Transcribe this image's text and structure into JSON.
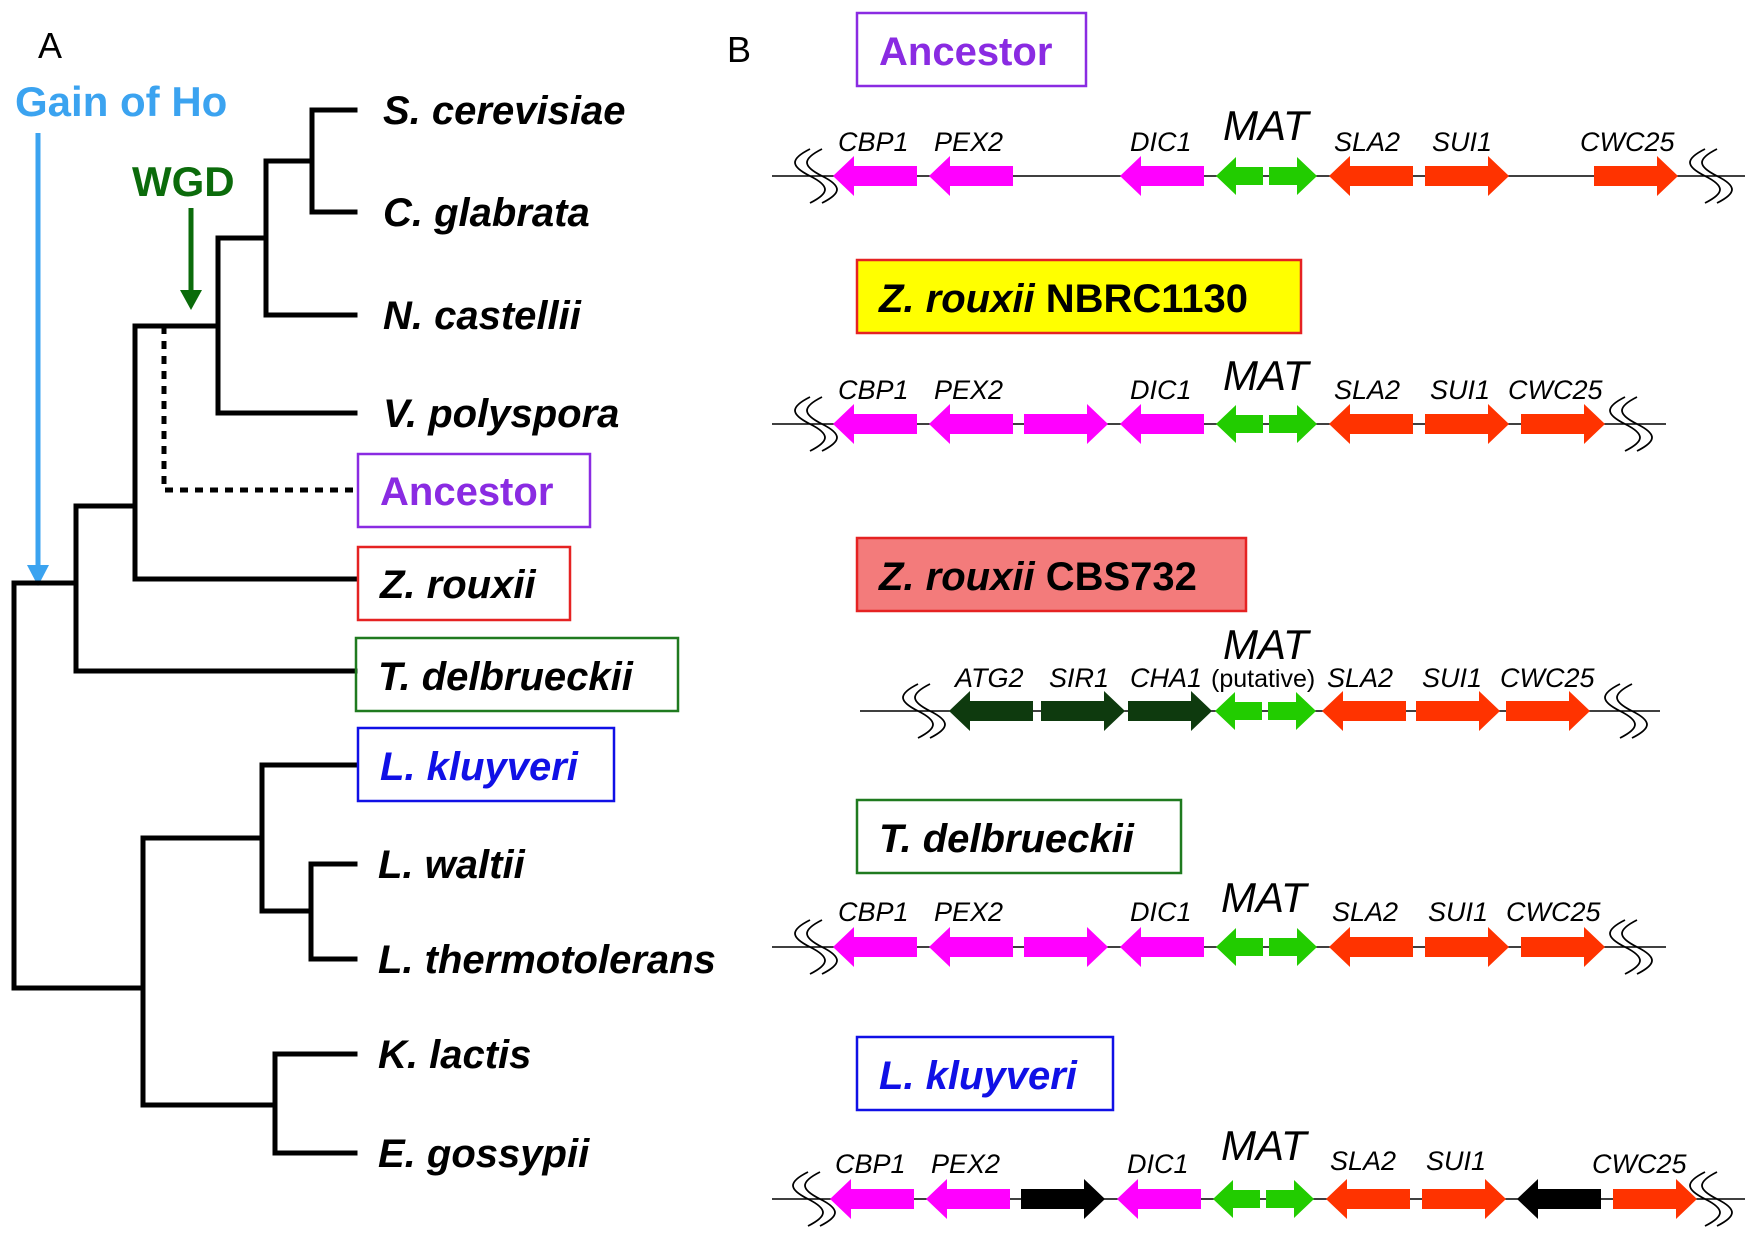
{
  "panel_a": {
    "letter": "A",
    "gain_label": "Gain of Ho",
    "wgd_label": "WGD",
    "taxa": [
      {
        "id": "scer",
        "genus": "S.",
        "species": "cerevisiae"
      },
      {
        "id": "cgla",
        "genus": "C.",
        "species": "glabrata"
      },
      {
        "id": "ncas",
        "genus": "N.",
        "species": "castellii"
      },
      {
        "id": "vpol",
        "genus": "V.",
        "species": "polyspora"
      },
      {
        "id": "anc",
        "name": "Ancestor"
      },
      {
        "id": "zrou",
        "genus": "Z.",
        "species": "rouxii"
      },
      {
        "id": "tdel",
        "genus": "T.",
        "species": "delbrueckii"
      },
      {
        "id": "lklu",
        "genus": "L.",
        "species": "kluyveri"
      },
      {
        "id": "lwal",
        "genus": "L.",
        "species": "waltii"
      },
      {
        "id": "lthe",
        "genus": "L.",
        "species": "thermotolerans"
      },
      {
        "id": "klac",
        "genus": "K.",
        "species": "lactis"
      },
      {
        "id": "egos",
        "genus": "E.",
        "species": "gossypii"
      }
    ]
  },
  "panel_b": {
    "letter": "B",
    "loci": [
      {
        "id": "ancestor",
        "title": "Ancestor",
        "title_italic": "",
        "title_plain": "",
        "mat_label": "MAT",
        "putative": "",
        "genes": [
          "CBP1",
          "PEX2",
          "DIC1",
          "SLA2",
          "SUI1",
          "CWC25"
        ]
      },
      {
        "id": "nbrc",
        "title": "",
        "title_italic": "Z. rouxii",
        "title_plain": " NBRC1130",
        "mat_label": "MAT",
        "putative": "",
        "genes": [
          "CBP1",
          "PEX2",
          "DIC1",
          "SLA2",
          "SUI1",
          "CWC25"
        ]
      },
      {
        "id": "cbs",
        "title": "",
        "title_italic": "Z. rouxii",
        "title_plain": " CBS732",
        "mat_label": "MAT",
        "putative": "(putative)",
        "genes": [
          "ATG2",
          "SIR1",
          "CHA1",
          "SLA2",
          "SUI1",
          "CWC25"
        ]
      },
      {
        "id": "tdel",
        "title": "T. delbrueckii",
        "title_italic": "",
        "title_plain": "",
        "mat_label": "MAT",
        "putative": "",
        "genes": [
          "CBP1",
          "PEX2",
          "DIC1",
          "SLA2",
          "SUI1",
          "CWC25"
        ]
      },
      {
        "id": "lklu",
        "title": "L. kluyveri",
        "title_italic": "",
        "title_plain": "",
        "mat_label": "MAT",
        "putative": "",
        "genes": [
          "CBP1",
          "PEX2",
          "DIC1",
          "SLA2",
          "SUI1",
          "CWC25"
        ]
      }
    ]
  },
  "colors": {
    "gain": "#3ba3f0",
    "wgd": "#0b6b0b",
    "ancestor": "#8a2be2",
    "zrouxii_box": "#e52222",
    "tdel_box": "#1f7a1f",
    "lklu_box": "#1010e6",
    "nbrc_fill": "#ffff00",
    "cbs_fill": "#f37b7b",
    "magenta_gene": "#ff00ff",
    "mat_gene": "#22cc00",
    "red_gene": "#ff3300",
    "dark_gene": "#0e3a0e",
    "black_gene": "#000000"
  }
}
